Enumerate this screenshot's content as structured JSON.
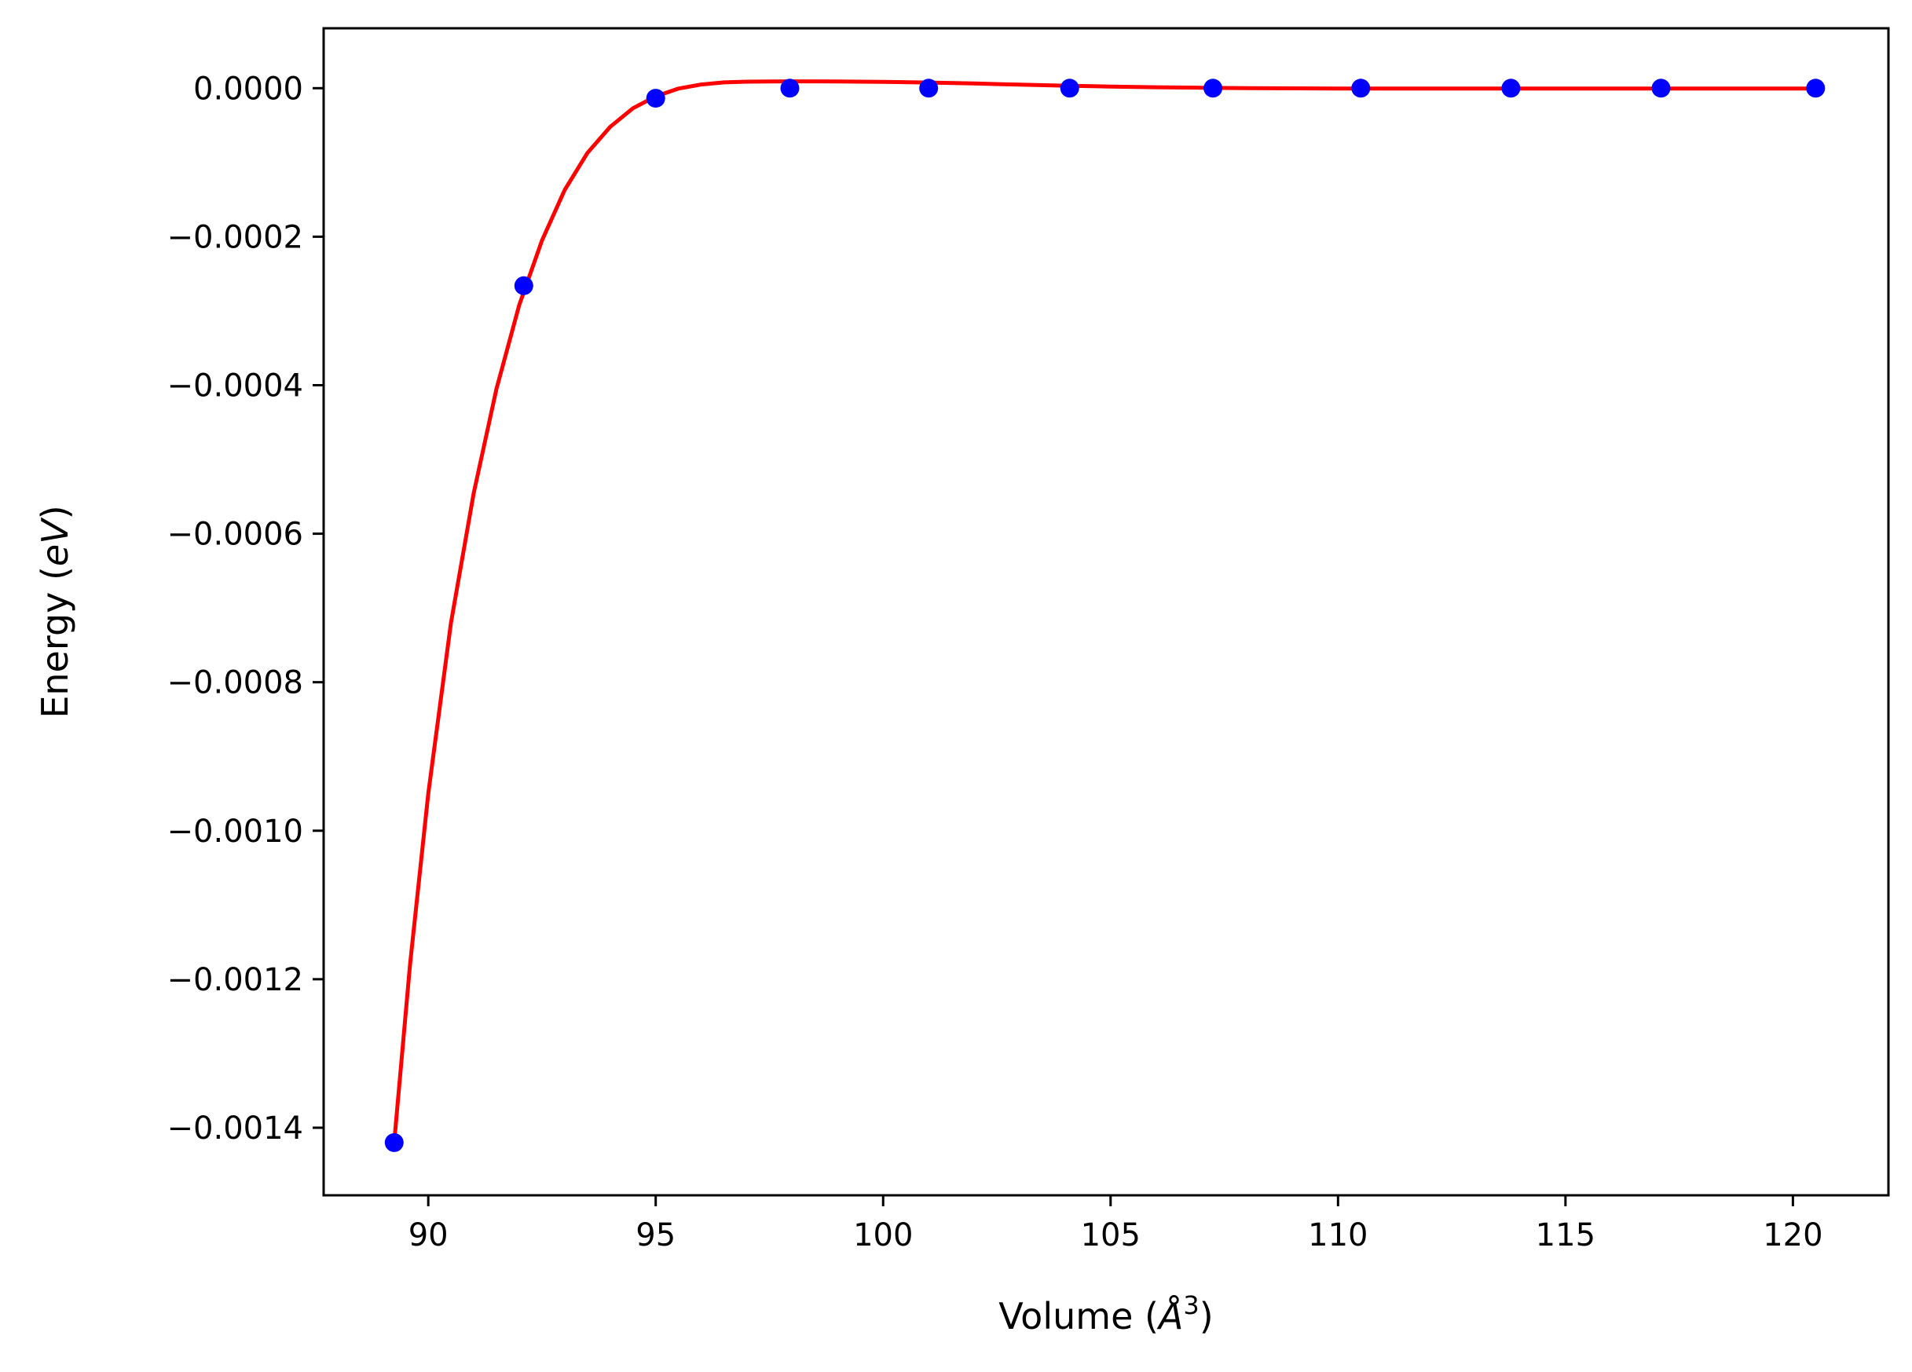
{
  "chart_data": {
    "type": "scatter",
    "xlabel": "Volume ($\\AA^3$)",
    "ylabel": "Energy ($eV$)",
    "xlabel_parts": {
      "pre": "Volume (",
      "sym": "Å",
      "sup": "3",
      "post": ")"
    },
    "ylabel_parts": {
      "pre": "Energy (",
      "ital": "eV",
      "post": ")"
    },
    "xlim": [
      87.7,
      122.1
    ],
    "ylim": [
      -0.001491,
      8.07e-05
    ],
    "x_ticks": [
      90,
      95,
      100,
      105,
      110,
      115,
      120
    ],
    "x_tick_labels": [
      "90",
      "95",
      "100",
      "105",
      "110",
      "115",
      "120"
    ],
    "y_ticks": [
      0.0,
      -0.0002,
      -0.0004,
      -0.0006,
      -0.0008,
      -0.001,
      -0.0012,
      -0.0014
    ],
    "y_tick_labels": [
      "0.0000",
      "−0.0002",
      "−0.0004",
      "−0.0006",
      "−0.0008",
      "−0.0010",
      "−0.0012",
      "−0.0014"
    ],
    "grid": false,
    "legend": "none",
    "series": [
      {
        "kind": "points",
        "color": "#0000ff",
        "x": [
          89.25,
          92.1,
          95.0,
          97.95,
          101.0,
          104.1,
          107.25,
          110.5,
          113.8,
          117.1,
          120.5
        ],
        "y": [
          -0.00142,
          -0.000266,
          -1.35e-05,
          0.0,
          0.0,
          0.0,
          0.0,
          0.0,
          0.0,
          0.0,
          0.0
        ]
      },
      {
        "kind": "line",
        "color": "#ff0000",
        "x": [
          89.25,
          89.6,
          90.0,
          90.5,
          91.0,
          91.5,
          92.0,
          92.5,
          93.0,
          93.5,
          94.0,
          94.5,
          95.0,
          95.5,
          96.0,
          96.5,
          97.0,
          97.5,
          98.0,
          98.5,
          99.0,
          100.0,
          101.0,
          102.0,
          103.0,
          104.0,
          105.0,
          106.0,
          107.0,
          108.0,
          109.0,
          110.0,
          112.0,
          114.0,
          116.0,
          118.0,
          120.5
        ],
        "y": [
          -0.00142,
          -0.00118,
          -0.00095,
          -0.00072,
          -0.000545,
          -0.000405,
          -0.000292,
          -0.000205,
          -0.000137,
          -8.7e-05,
          -5.2e-05,
          -2.7e-05,
          -1.1e-05,
          -5e-07,
          5e-06,
          7.8e-06,
          8.8e-06,
          9.1e-06,
          9.2e-06,
          9.2e-06,
          9.1e-06,
          8.6e-06,
          7.6e-06,
          6.3e-06,
          4.8e-06,
          3.4e-06,
          2.2e-06,
          1.3e-06,
          6e-07,
          1e-07,
          -2e-07,
          -4e-07,
          -5e-07,
          -5e-07,
          -5e-07,
          -5e-07,
          -5e-07
        ]
      }
    ]
  }
}
